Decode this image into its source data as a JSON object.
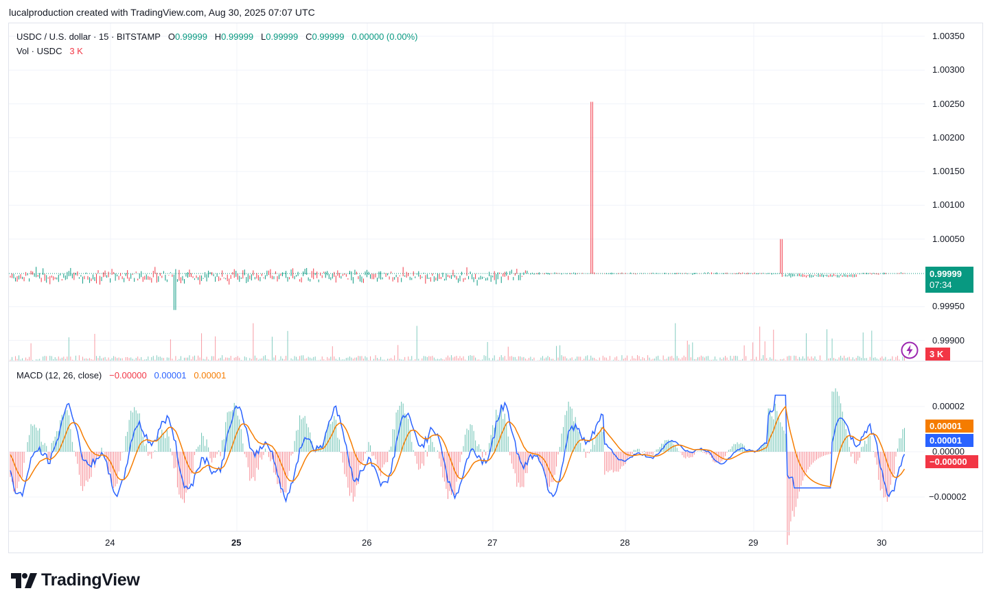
{
  "header": {
    "text": "lucalproduction created with TradingView.com, Aug 30, 2025 07:07 UTC"
  },
  "legend": {
    "symbol": "USDC / U.S. dollar · 15 · BITSTAMP",
    "o_label": "O",
    "o_value": "0.99999",
    "h_label": "H",
    "h_value": "0.99999",
    "l_label": "L",
    "l_value": "0.99999",
    "c_label": "C",
    "c_value": "0.99999",
    "change": "0.00000 (0.00%)",
    "vol_label": "Vol · USDC",
    "vol_value": "3 K",
    "macd_label": "MACD (12, 26, close)",
    "macd_hist": "−0.00000",
    "macd_line": "0.00001",
    "macd_signal": "0.00001"
  },
  "price_axis": [
    "1.00350",
    "1.00300",
    "1.00250",
    "1.00200",
    "1.00150",
    "1.00100",
    "1.00050",
    "0.99950",
    "0.99900"
  ],
  "macd_axis": [
    "0.00002",
    "0.00000",
    "−0.00002"
  ],
  "badges": {
    "price": "0.99999",
    "countdown": "07:34",
    "volume": "3 K",
    "signal": "0.00001",
    "macd": "0.00001",
    "hist": "−0.00000"
  },
  "time_axis": [
    "24",
    "25",
    "26",
    "27",
    "28",
    "29",
    "30"
  ],
  "colors": {
    "up": "#089981",
    "down": "#f23645",
    "macd": "#2962ff",
    "signal": "#f57c00",
    "grid": "#f0f3fa"
  },
  "brand": "TradingView",
  "chart_data": {
    "type": "candlestick",
    "symbol": "USDC / U.S. dollar",
    "interval": "15",
    "exchange": "BITSTAMP",
    "ohlc_last": {
      "open": 0.99999,
      "high": 0.99999,
      "low": 0.99999,
      "close": 0.99999,
      "change": 0.0,
      "change_pct": 0.0
    },
    "price_ylim": [
      0.99875,
      1.00375
    ],
    "macd_ylim": [
      -3e-05,
      3e-05
    ],
    "x_ticks": [
      "24",
      "25",
      "26",
      "27",
      "28",
      "29",
      "30"
    ],
    "notable_points": [
      {
        "day": 27.8,
        "high": 1.00253,
        "note": "spike"
      },
      {
        "day": 24.5,
        "low": 0.99945
      },
      {
        "day": 29.3,
        "high": 1.0005
      }
    ],
    "macd": {
      "fast": 12,
      "slow": 26,
      "source": "close",
      "last_hist": -0.0,
      "last_macd": 1e-05,
      "last_signal": 1e-05
    },
    "volume_last": "3 K"
  }
}
